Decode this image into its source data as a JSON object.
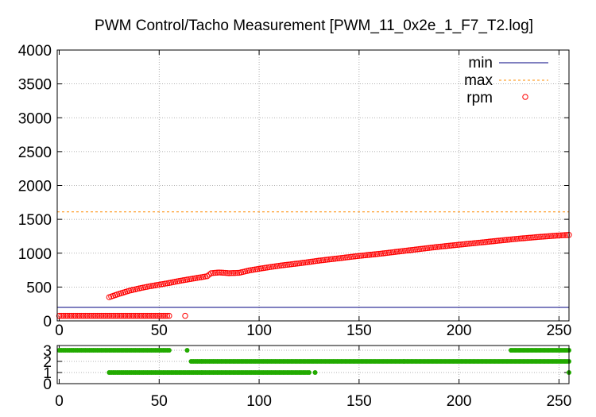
{
  "chart_data": [
    {
      "type": "scatter",
      "title": "PWM Control/Tacho Measurement [PWM_11_0x2e_1_F7_T2.log]",
      "xlabel": "",
      "ylabel": "",
      "xlim": [
        -1,
        255
      ],
      "ylim": [
        0,
        4000
      ],
      "xticks": [
        "0",
        "50",
        "100",
        "150",
        "200",
        "250"
      ],
      "yticks": [
        "0",
        "500",
        "1000",
        "1500",
        "2000",
        "2500",
        "3000",
        "3500",
        "4000"
      ],
      "grid": true,
      "legend_placement": "top-right",
      "series": [
        {
          "name": "min",
          "style": "line",
          "color": "#000080",
          "y_const": 200
        },
        {
          "name": "max",
          "style": "dashed-line",
          "color": "#ff8c00",
          "y_const": 1610
        },
        {
          "name": "rpm",
          "style": "open-circle",
          "color": "#ff0000",
          "low_points": {
            "x_start": 0,
            "x_end": 55,
            "value": 75,
            "extra": [
              [
                63,
                75
              ]
            ]
          },
          "curve": [
            [
              25,
              350
            ],
            [
              30,
              400
            ],
            [
              35,
              445
            ],
            [
              40,
              480
            ],
            [
              45,
              510
            ],
            [
              50,
              535
            ],
            [
              55,
              560
            ],
            [
              60,
              590
            ],
            [
              65,
              615
            ],
            [
              70,
              640
            ],
            [
              74,
              660
            ],
            [
              76,
              705
            ],
            [
              80,
              715
            ],
            [
              85,
              705
            ],
            [
              90,
              710
            ],
            [
              95,
              745
            ],
            [
              100,
              770
            ],
            [
              110,
              815
            ],
            [
              120,
              850
            ],
            [
              130,
              890
            ],
            [
              140,
              925
            ],
            [
              150,
              960
            ],
            [
              160,
              990
            ],
            [
              170,
              1025
            ],
            [
              180,
              1060
            ],
            [
              190,
              1095
            ],
            [
              200,
              1125
            ],
            [
              210,
              1155
            ],
            [
              220,
              1185
            ],
            [
              230,
              1215
            ],
            [
              240,
              1240
            ],
            [
              250,
              1262
            ],
            [
              255,
              1270
            ]
          ]
        }
      ]
    },
    {
      "type": "scatter",
      "xlim": [
        -1,
        255
      ],
      "ylim": [
        0,
        3
      ],
      "xticks": [
        "0",
        "50",
        "100",
        "150",
        "200",
        "250"
      ],
      "yticks": [
        "0",
        "1",
        "2",
        "3"
      ],
      "grid": true,
      "series": [
        {
          "style": "filled-dot",
          "color": "#22aa00",
          "segments": [
            {
              "y": 3,
              "x_start": 0,
              "x_end": 55
            },
            {
              "y": 3,
              "x_start": 226,
              "x_end": 255
            },
            {
              "y": 2,
              "x_start": 66,
              "x_end": 255
            },
            {
              "y": 1,
              "x_start": 25,
              "x_end": 125
            }
          ],
          "isolated": [
            [
              64,
              3
            ],
            [
              128,
              1
            ],
            [
              255,
              1
            ]
          ]
        }
      ]
    }
  ]
}
